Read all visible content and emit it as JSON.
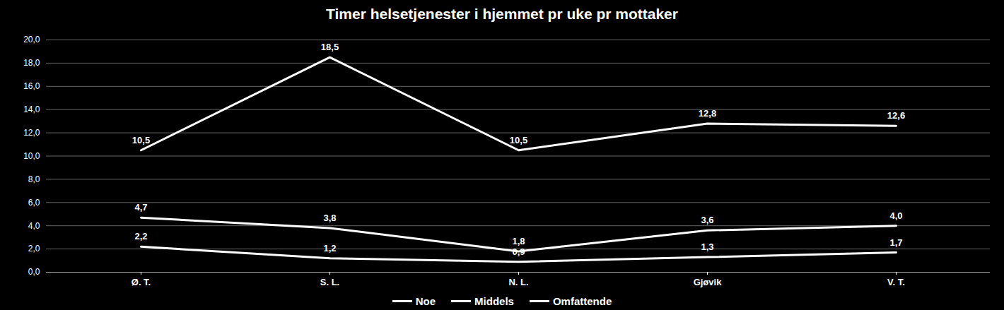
{
  "chart_data": {
    "type": "line",
    "title": "Timer helsetjenester i hjemmet pr uke pr mottaker",
    "categories": [
      "Ø. T.",
      "S. L.",
      "N. L.",
      "Gjøvik",
      "V. T."
    ],
    "series": [
      {
        "name": "Noe",
        "color": "#ffffff",
        "values": [
          2.2,
          1.2,
          0.9,
          1.3,
          1.7
        ],
        "value_labels": [
          "2,2",
          "1,2",
          "0,9",
          "1,3",
          "1,7"
        ]
      },
      {
        "name": "Middels",
        "color": "#ffffff",
        "values": [
          4.7,
          3.8,
          1.8,
          3.6,
          4.0
        ],
        "value_labels": [
          "4,7",
          "3,8",
          "1,8",
          "3,6",
          "4,0"
        ]
      },
      {
        "name": "Omfattende",
        "color": "#ffffff",
        "values": [
          10.5,
          18.5,
          10.5,
          12.8,
          12.6
        ],
        "value_labels": [
          "10,5",
          "18,5",
          "10,5",
          "12,8",
          "12,6"
        ]
      }
    ],
    "ylim": [
      0,
      20
    ],
    "yticks": [
      {
        "value": 0,
        "label": "0,0"
      },
      {
        "value": 2,
        "label": "2,0"
      },
      {
        "value": 4,
        "label": "4,0"
      },
      {
        "value": 6,
        "label": "6,0"
      },
      {
        "value": 8,
        "label": "8,0"
      },
      {
        "value": 10,
        "label": "10,0"
      },
      {
        "value": 12,
        "label": "12,0"
      },
      {
        "value": 14,
        "label": "14,0"
      },
      {
        "value": 16,
        "label": "16,0"
      },
      {
        "value": 18,
        "label": "18,0"
      },
      {
        "value": 20,
        "label": "20,0"
      }
    ],
    "grid": true,
    "data_labels": true,
    "legend": "bottom"
  }
}
